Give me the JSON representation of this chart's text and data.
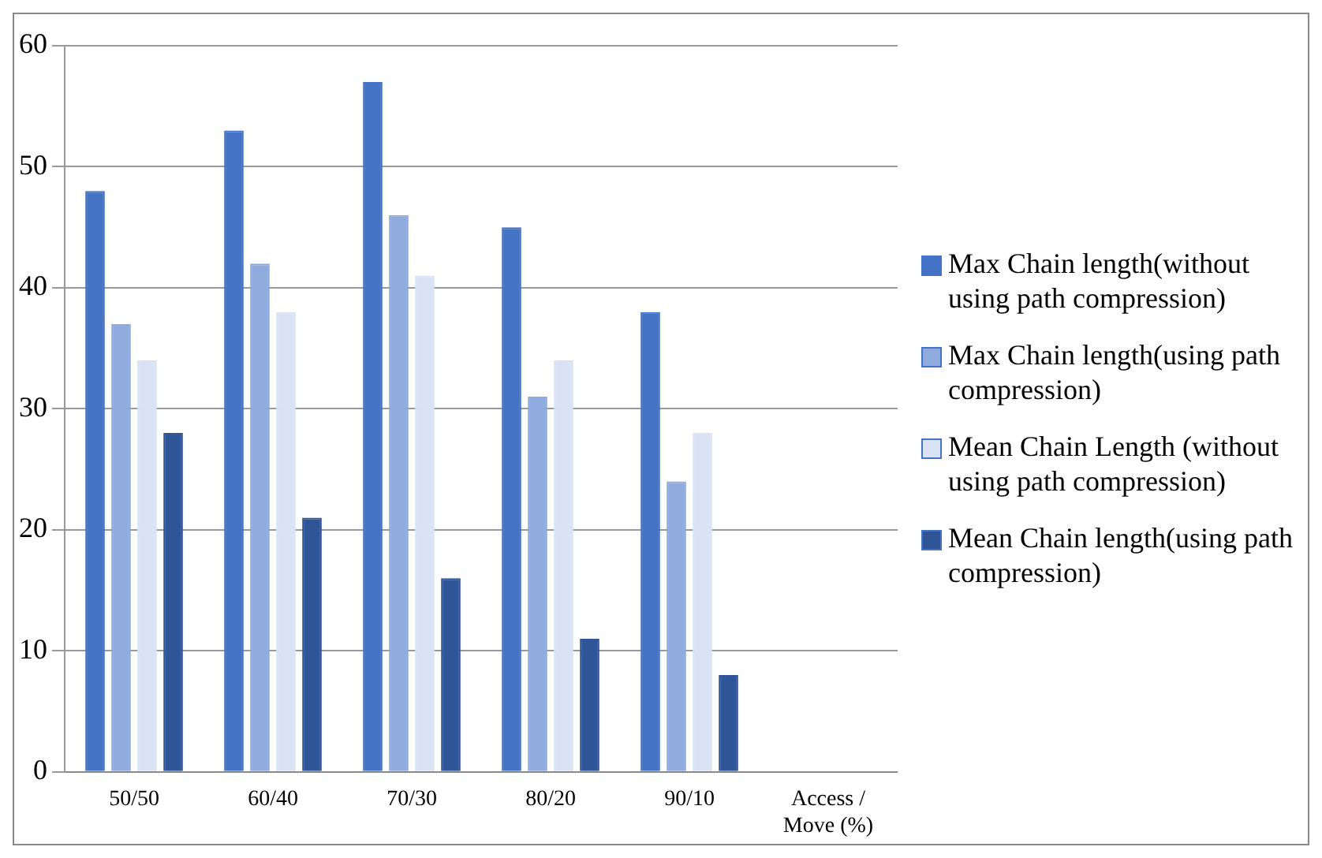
{
  "chart_data": {
    "type": "bar",
    "categories": [
      "50/50",
      "60/40",
      "70/30",
      "80/20",
      "90/10",
      "Access / Move (%)"
    ],
    "series": [
      {
        "name": "Max Chain length(without using path compression)",
        "color": "#4472c4",
        "values": [
          48,
          53,
          57,
          45,
          38,
          null
        ]
      },
      {
        "name": "Max Chain length(using path compression)",
        "color": "#8faadc",
        "values": [
          37,
          42,
          46,
          31,
          24,
          null
        ]
      },
      {
        "name": "Mean Chain Length (without using path compression)",
        "color": "#dae3f3",
        "values": [
          34,
          38,
          41,
          34,
          28,
          null
        ]
      },
      {
        "name": "Mean Chain length(using path compression)",
        "color": "#2f5597",
        "values": [
          28,
          21,
          16,
          11,
          8,
          null
        ]
      }
    ],
    "ylim": [
      0,
      60
    ],
    "yticks": [
      0,
      10,
      20,
      30,
      40,
      50,
      60
    ],
    "grid": "y",
    "legend": "right"
  }
}
